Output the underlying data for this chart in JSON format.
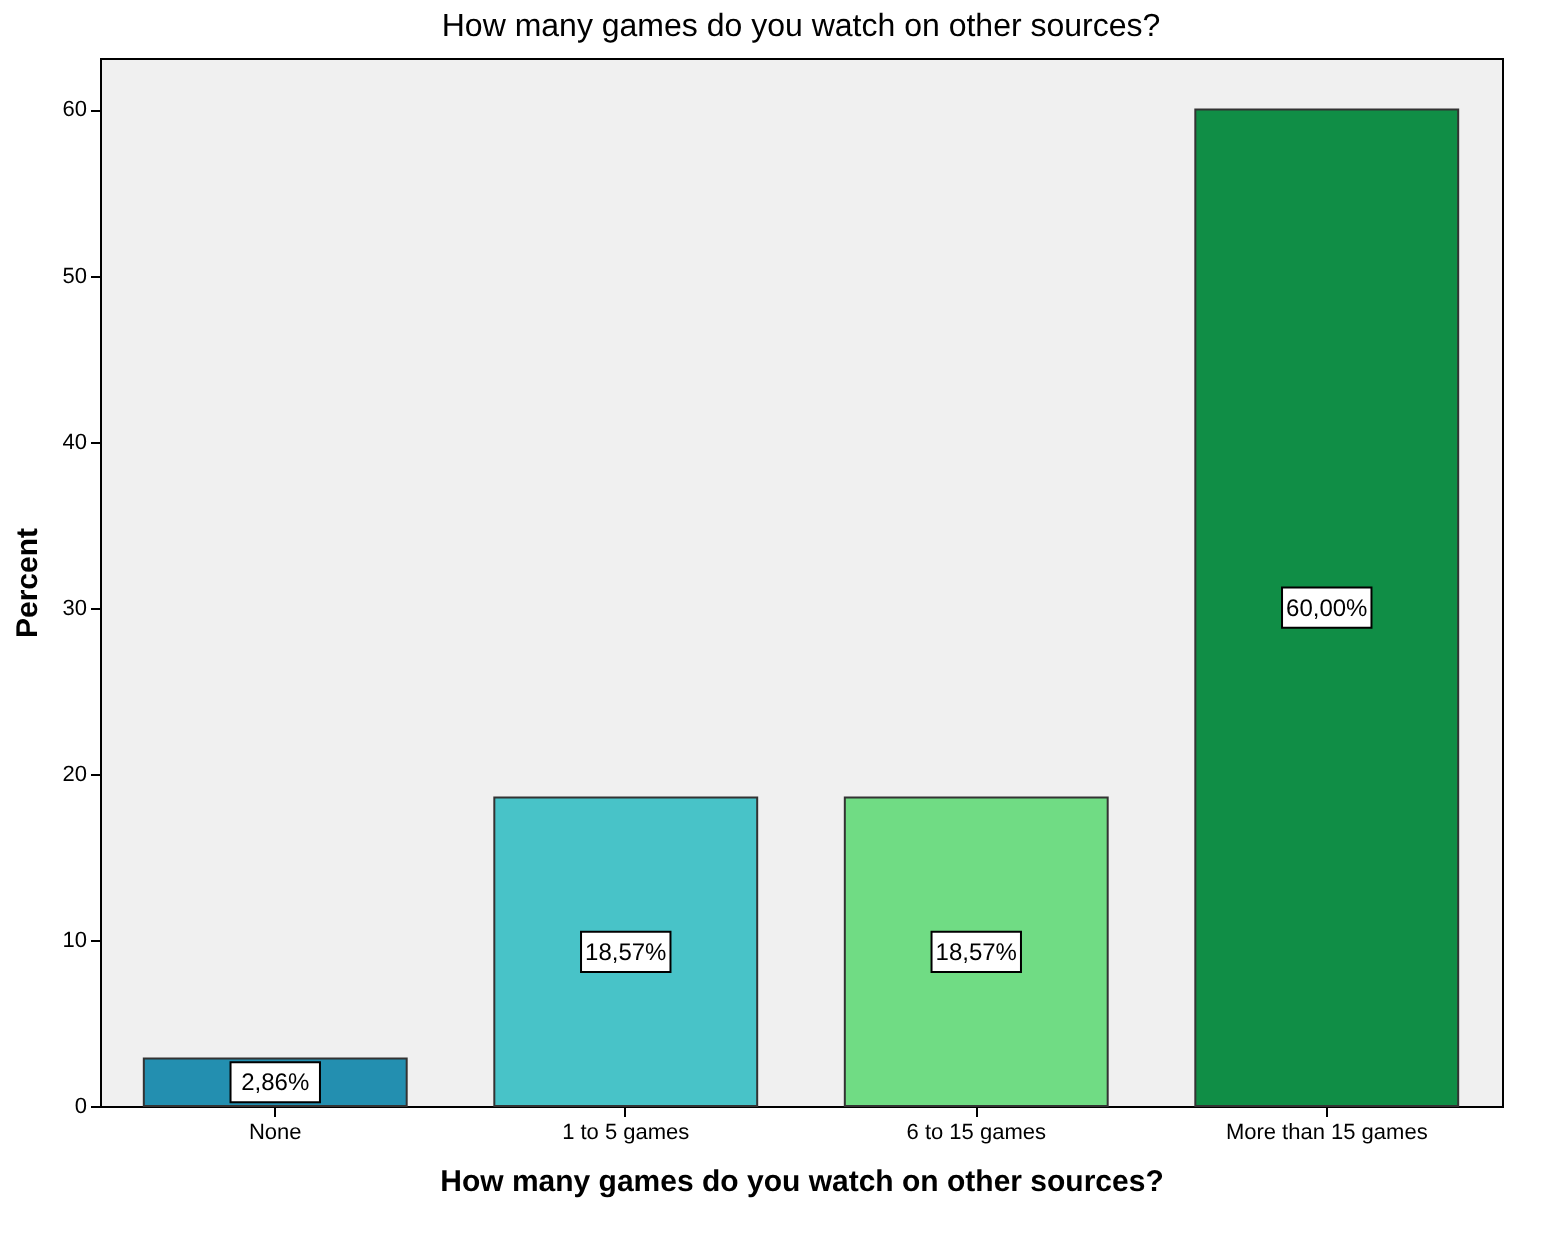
{
  "chart_data": {
    "type": "bar",
    "title": "How many games do you watch on other sources?",
    "xlabel": "How many games do you watch on other sources?",
    "ylabel": "Percent",
    "categories": [
      "None",
      "1 to 5 games",
      "6 to 15 games",
      "More than 15 games"
    ],
    "values": [
      2.86,
      18.57,
      18.57,
      60.0
    ],
    "colors": [
      "#238fb0",
      "#48c3c8",
      "#70dc84",
      "#108e46"
    ],
    "value_labels": [
      "2,86%",
      "18,57%",
      "18,57%",
      "60,00%"
    ],
    "ylim": [
      0,
      63.1
    ],
    "yticks": [
      0,
      10,
      20,
      30,
      40,
      50,
      60
    ],
    "grid": false
  }
}
